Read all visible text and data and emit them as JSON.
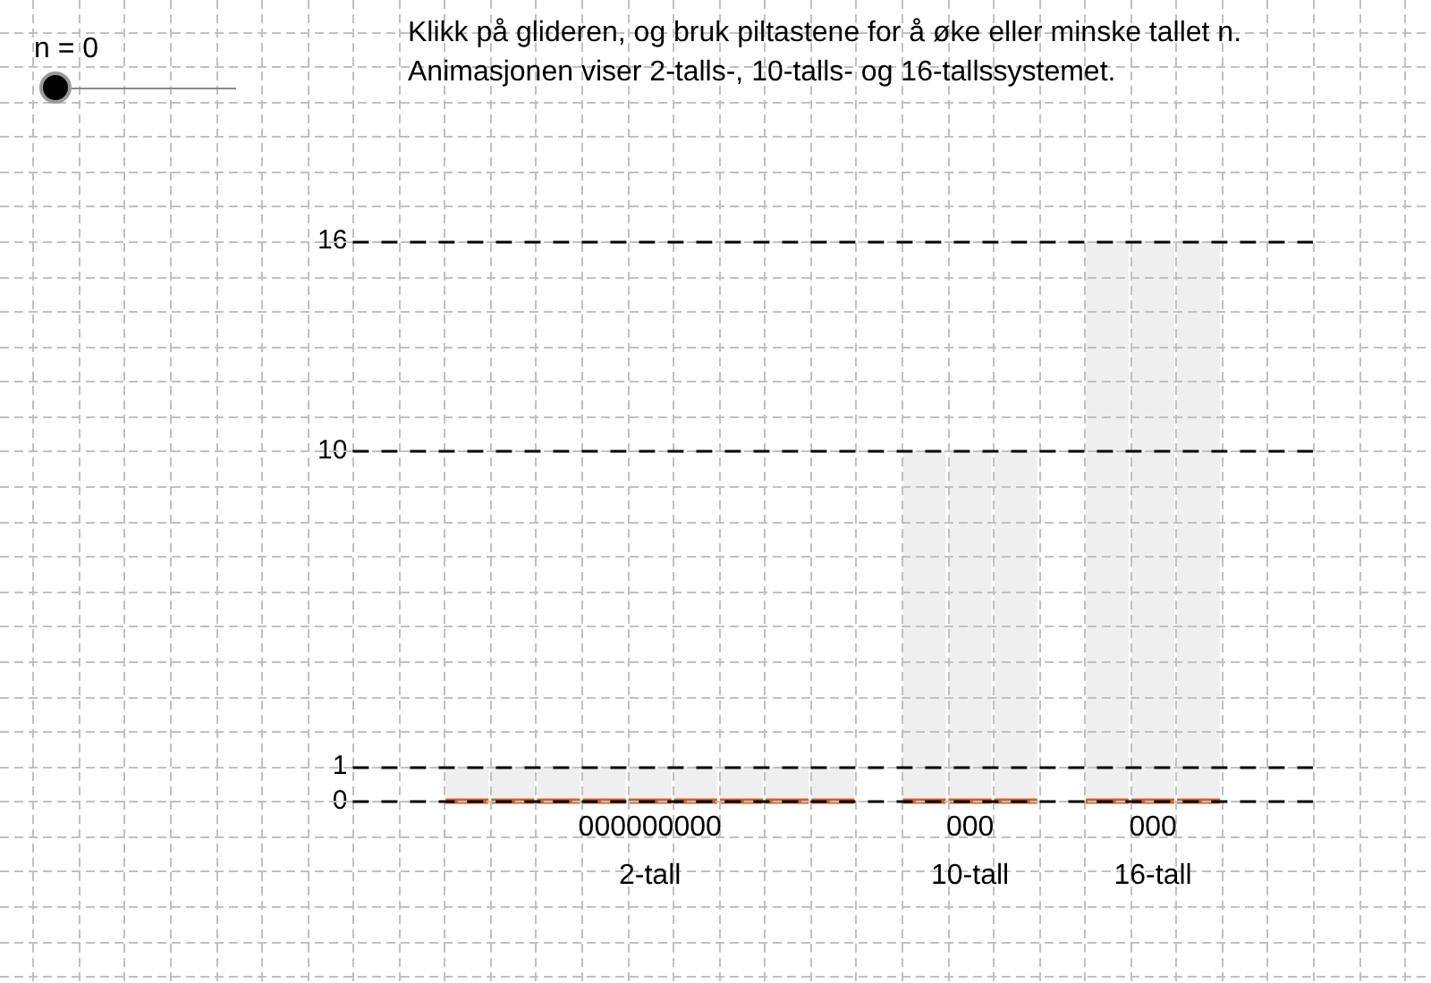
{
  "chart_data": {
    "type": "bar",
    "title": "Klikk på glideren, og bruk piltastene for å øke eller minske tallet n.",
    "subtitle": "Animasjonen viser 2-talls-, 10-talls- og 16-tallssystemet.",
    "annotations": [
      "n = 0"
    ],
    "categories": [
      null,
      null,
      null,
      null,
      null,
      null,
      "2-tall",
      null,
      null,
      null,
      null,
      null,
      null,
      "10-tall",
      null,
      null,
      null,
      "16-tall",
      null,
      null,
      null
    ],
    "series": [
      {
        "color": "#c86432",
        "values": [
          null,
          null,
          0,
          0,
          0,
          0,
          0,
          0,
          0,
          0,
          0,
          null,
          0,
          0,
          0,
          null,
          0,
          0,
          0,
          null,
          null
        ],
        "value_labels": [
          null,
          null,
          null,
          null,
          null,
          null,
          "000000000",
          null,
          null,
          null,
          null,
          null,
          null,
          "000",
          null,
          null,
          null,
          "000",
          null,
          null,
          null
        ]
      },
      {
        "color": "#efefef",
        "values": [
          null,
          null,
          1,
          1,
          1,
          1,
          1,
          1,
          1,
          1,
          1,
          null,
          10,
          10,
          10,
          null,
          16,
          16,
          16,
          null,
          null
        ]
      }
    ],
    "stacked": true,
    "ylim": [
      -5,
      22
    ],
    "yticks": [
      {
        "value": -5,
        "label": null
      },
      {
        "value": -4,
        "label": null
      },
      {
        "value": -3,
        "label": null
      },
      {
        "value": -2,
        "label": null
      },
      {
        "value": -1,
        "label": null
      },
      0,
      1,
      {
        "value": 2,
        "label": null
      },
      {
        "value": 3,
        "label": null
      },
      {
        "value": 4,
        "label": null
      },
      {
        "value": 5,
        "label": null
      },
      {
        "value": 6,
        "label": null
      },
      {
        "value": 7,
        "label": null
      },
      {
        "value": 8,
        "label": null
      },
      {
        "value": 9,
        "label": null
      },
      10,
      {
        "value": 11,
        "label": null
      },
      {
        "value": 12,
        "label": null
      },
      {
        "value": 13,
        "label": null
      },
      {
        "value": 14,
        "label": null
      },
      {
        "value": 15,
        "label": null
      },
      16,
      {
        "value": 17,
        "label": null
      },
      {
        "value": 18,
        "label": null
      },
      {
        "value": 19,
        "label": null
      },
      {
        "value": 20,
        "label": null
      },
      {
        "value": 21,
        "label": null
      },
      {
        "value": 22,
        "label": null
      }
    ],
    "grid": true
  }
}
